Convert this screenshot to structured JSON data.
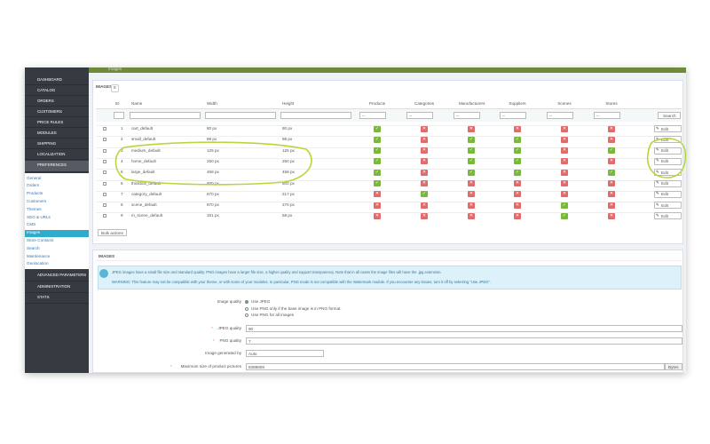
{
  "header": {
    "breadcrumb": "Images"
  },
  "sidebar": {
    "menu": [
      "DASHBOARD",
      "CATALOG",
      "ORDERS",
      "CUSTOMERS",
      "PRICE RULES",
      "MODULES",
      "SHIPPING",
      "LOCALIZATION",
      "PREFERENCES"
    ],
    "submenu": [
      "General",
      "Orders",
      "Products",
      "Customers",
      "Themes",
      "SEO & URLs",
      "CMS",
      "Images",
      "Store Contacts",
      "Search",
      "Maintenance",
      "Geolocation"
    ],
    "menu_after": [
      "ADVANCED PARAMETERS",
      "ADMINISTRATION",
      "STATS"
    ]
  },
  "table": {
    "title": "IMAGES",
    "count": 9,
    "columns": [
      "ID",
      "Name",
      "Width",
      "Height",
      "Products",
      "Categories",
      "Manufacturers",
      "Suppliers",
      "Scenes",
      "Stores"
    ],
    "filter_placeholder": "--",
    "search": "Search",
    "edit": "Edit",
    "bulk_actions": "Bulk actions",
    "rows": [
      {
        "id": 1,
        "name": "cart_default",
        "width": "80 px",
        "height": "80 px",
        "flags": [
          true,
          false,
          false,
          false,
          false,
          false
        ]
      },
      {
        "id": 2,
        "name": "small_default",
        "width": "98 px",
        "height": "98 px",
        "flags": [
          true,
          false,
          true,
          true,
          false,
          false
        ]
      },
      {
        "id": 3,
        "name": "medium_default",
        "width": "125 px",
        "height": "125 px",
        "flags": [
          true,
          false,
          true,
          true,
          false,
          true
        ]
      },
      {
        "id": 4,
        "name": "home_default",
        "width": "250 px",
        "height": "250 px",
        "flags": [
          true,
          false,
          true,
          true,
          false,
          false
        ]
      },
      {
        "id": 5,
        "name": "large_default",
        "width": "458 px",
        "height": "458 px",
        "flags": [
          true,
          false,
          true,
          true,
          false,
          true
        ]
      },
      {
        "id": 6,
        "name": "thickbox_default",
        "width": "800 px",
        "height": "800 px",
        "flags": [
          true,
          false,
          false,
          false,
          false,
          false
        ]
      },
      {
        "id": 7,
        "name": "category_default",
        "width": "870 px",
        "height": "217 px",
        "flags": [
          false,
          true,
          false,
          false,
          false,
          false
        ]
      },
      {
        "id": 8,
        "name": "scene_default",
        "width": "870 px",
        "height": "270 px",
        "flags": [
          false,
          false,
          false,
          false,
          true,
          false
        ]
      },
      {
        "id": 9,
        "name": "m_scene_default",
        "width": "161 px",
        "height": "58 px",
        "flags": [
          false,
          false,
          false,
          false,
          true,
          false
        ]
      }
    ]
  },
  "options": {
    "title": "IMAGES",
    "info": "JPEG images have a small file size and standard quality. PNG images have a larger file size, a higher quality and support transparency. Note that in all cases the image files will have the .jpg extension.",
    "warning": "WARNING: This feature may not be compatible with your theme, or with some of your modules. In particular, PNG mode is not compatible with the Watermark module. If you encounter any issues, turn it off by selecting \"Use JPEG\".",
    "image_quality_label": "Image quality",
    "image_quality_choices": [
      "Use JPEG",
      "Use PNG only if the base image is in PNG format.",
      "Use PNG for all images"
    ],
    "jpeg_quality_label": "JPEG quality",
    "jpeg_quality": 90,
    "png_quality_label": "PNG quality",
    "png_quality": 7,
    "generated_by_label": "Image generated by",
    "generated_by": "Auto",
    "max_size_label": "Maximum size of product pictures",
    "max_size": 8388608,
    "max_size_unit": "Bytes"
  }
}
